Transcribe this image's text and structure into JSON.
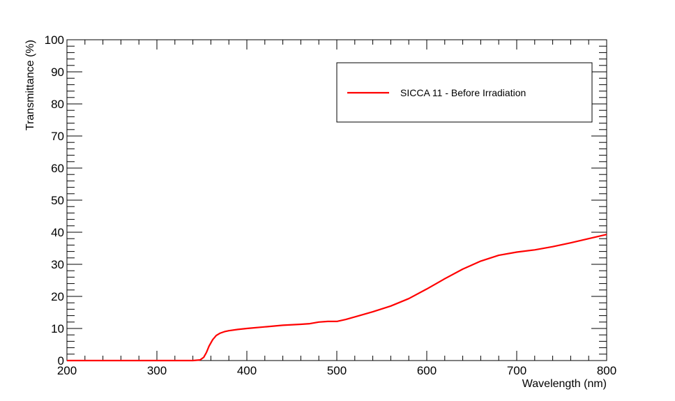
{
  "chart_data": {
    "type": "line",
    "title": "",
    "xlabel": "Wavelength (nm)",
    "ylabel": "Transmittance (%)",
    "xlim": [
      200,
      800
    ],
    "ylim": [
      0,
      100
    ],
    "x_ticks": [
      200,
      300,
      400,
      500,
      600,
      700,
      800
    ],
    "y_ticks": [
      0,
      10,
      20,
      30,
      40,
      50,
      60,
      70,
      80,
      90,
      100
    ],
    "grid": false,
    "legend_position": "top-right",
    "series": [
      {
        "name": "SICCA 11 - Before Irradiation",
        "color": "#ff0000",
        "x": [
          200,
          250,
          300,
          340,
          348,
          352,
          355,
          358,
          362,
          366,
          370,
          375,
          380,
          390,
          400,
          420,
          440,
          460,
          470,
          480,
          490,
          500,
          510,
          520,
          540,
          560,
          580,
          600,
          620,
          640,
          660,
          680,
          700,
          720,
          740,
          760,
          780,
          800
        ],
        "y": [
          0,
          0,
          0,
          0,
          0.2,
          1.0,
          2.5,
          4.5,
          6.5,
          7.8,
          8.5,
          9.0,
          9.3,
          9.7,
          10.0,
          10.5,
          11.0,
          11.3,
          11.5,
          12.0,
          12.2,
          12.2,
          12.8,
          13.6,
          15.2,
          17.0,
          19.3,
          22.3,
          25.5,
          28.5,
          31.0,
          32.8,
          33.8,
          34.5,
          35.5,
          36.7,
          38.0,
          39.3
        ]
      }
    ]
  }
}
